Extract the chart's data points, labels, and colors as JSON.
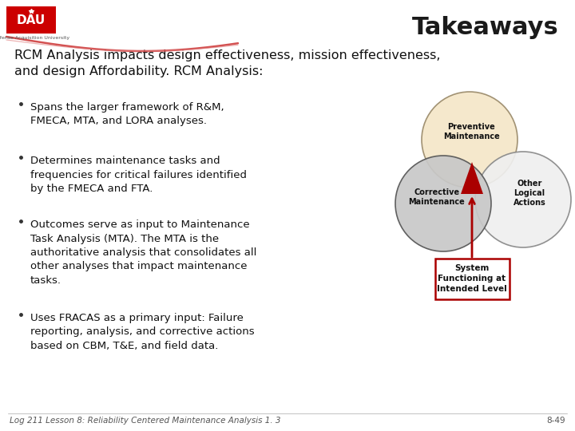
{
  "title": "Takeaways",
  "background_color": "#ffffff",
  "title_color": "#1a1a1a",
  "title_fontsize": 22,
  "header_text": "RCM Analysis impacts design effectiveness, mission effectiveness,\nand design Affordability. RCM Analysis:",
  "header_fontsize": 11.5,
  "bullet_points": [
    "Spans the larger framework of R&M,\nFMECA, MTA, and LORA analyses.",
    "Determines maintenance tasks and\nfrequencies for critical failures identified\nby the FMECA and FTA.",
    "Outcomes serve as input to Maintenance\nTask Analysis (MTA). The MTA is the\nauthoritative analysis that consolidates all\nother analyses that impact maintenance\ntasks.",
    "Uses FRACAS as a primary input: Failure\nreporting, analysis, and corrective actions\nbased on CBM, T&E, and field data."
  ],
  "bullet_fontsize": 9.5,
  "footer_left": "Log 211 Lesson 8: Reliability Centered Maintenance Analysis 1. 3",
  "footer_right": "8-49",
  "footer_fontsize": 7.5,
  "dau_red": "#cc0000",
  "diagram": {
    "preventive_color": "#f5e6c8",
    "corrective_color": "#c8c8c8",
    "other_color": "#efefef",
    "arrow_color": "#aa0000",
    "box_color": "#aa0000",
    "box_text": "System\nFunctioning at\nIntended Level"
  }
}
